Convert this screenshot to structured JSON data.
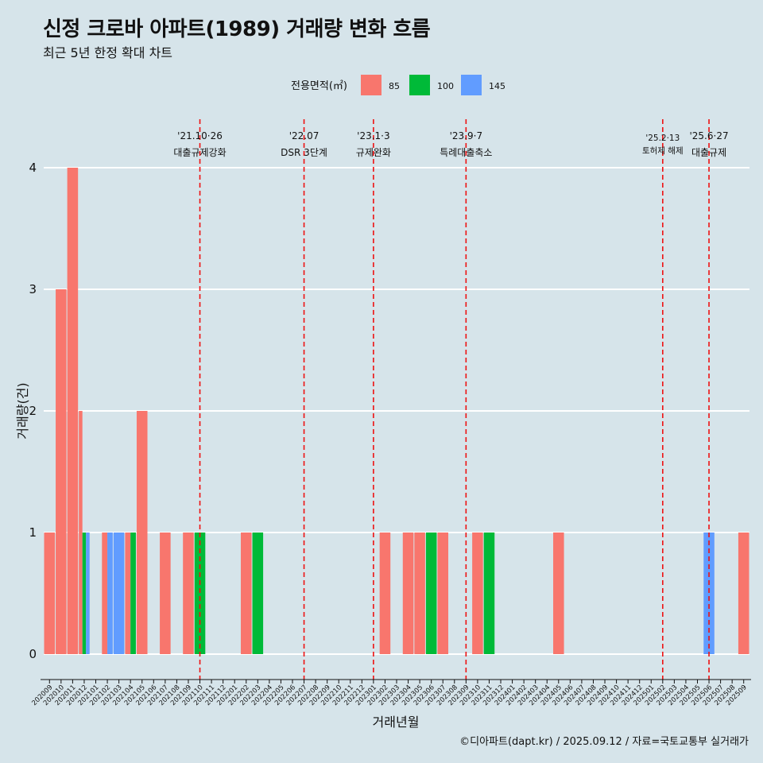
{
  "title": "신정 크로바 아파트(1989) 거래량 변화 흐름",
  "subtitle": "최근 5년 한정 확대 차트",
  "caption": "©디아파트(dapt.kr) / 2025.09.12 / 자료=국토교통부 실거래가",
  "chart_data": {
    "type": "bar",
    "xlabel": "거래년월",
    "ylabel": "거래량(건)",
    "ylim": [
      0,
      4
    ],
    "yticks": [
      0,
      1,
      2,
      3,
      4
    ],
    "legend": {
      "title": "전용면적(㎡)",
      "position": "top",
      "items": [
        {
          "name": "85",
          "color": "#f8766d"
        },
        {
          "name": "100",
          "color": "#00ba38"
        },
        {
          "name": "145",
          "color": "#619cff"
        }
      ]
    },
    "categories": [
      "202009",
      "202010",
      "202011",
      "202012",
      "202101",
      "202102",
      "202103",
      "202104",
      "202105",
      "202106",
      "202107",
      "202108",
      "202109",
      "202110",
      "202111",
      "202112",
      "202201",
      "202202",
      "202203",
      "202204",
      "202205",
      "202206",
      "202207",
      "202208",
      "202209",
      "202210",
      "202211",
      "202212",
      "202301",
      "202302",
      "202303",
      "202304",
      "202305",
      "202306",
      "202307",
      "202308",
      "202309",
      "202310",
      "202311",
      "202312",
      "202401",
      "202402",
      "202403",
      "202404",
      "202405",
      "202406",
      "202407",
      "202408",
      "202409",
      "202410",
      "202411",
      "202412",
      "202501",
      "202502",
      "202503",
      "202504",
      "202505",
      "202506",
      "202507",
      "202508",
      "202509"
    ],
    "series": [
      {
        "name": "85",
        "values": [
          1,
          3,
          4,
          2,
          0,
          1,
          0,
          1,
          2,
          0,
          1,
          0,
          1,
          0,
          0,
          0,
          0,
          1,
          0,
          0,
          0,
          0,
          0,
          0,
          0,
          0,
          0,
          0,
          0,
          1,
          0,
          1,
          1,
          0,
          1,
          0,
          0,
          1,
          0,
          0,
          0,
          0,
          0,
          0,
          1,
          0,
          0,
          0,
          0,
          0,
          0,
          0,
          0,
          0,
          0,
          0,
          0,
          0,
          0,
          0,
          1
        ]
      },
      {
        "name": "100",
        "values": [
          0,
          0,
          0,
          1,
          0,
          0,
          0,
          1,
          0,
          0,
          0,
          0,
          0,
          1,
          0,
          0,
          0,
          0,
          1,
          0,
          0,
          0,
          0,
          0,
          0,
          0,
          0,
          0,
          0,
          0,
          0,
          0,
          0,
          1,
          0,
          0,
          0,
          0,
          1,
          0,
          0,
          0,
          0,
          0,
          0,
          0,
          0,
          0,
          0,
          0,
          0,
          0,
          0,
          0,
          0,
          0,
          0,
          0,
          0,
          0,
          0
        ]
      },
      {
        "name": "145",
        "values": [
          0,
          0,
          0,
          1,
          0,
          1,
          1,
          0,
          0,
          0,
          0,
          0,
          0,
          0,
          0,
          0,
          0,
          0,
          0,
          0,
          0,
          0,
          0,
          0,
          0,
          0,
          0,
          0,
          0,
          0,
          0,
          0,
          0,
          0,
          0,
          0,
          0,
          0,
          0,
          0,
          0,
          0,
          0,
          0,
          0,
          0,
          0,
          0,
          0,
          0,
          0,
          0,
          0,
          0,
          0,
          0,
          0,
          1,
          0,
          0,
          0
        ]
      }
    ],
    "annotations": [
      {
        "x": "202110",
        "date": "'21.10·26",
        "label": "대출규제강화"
      },
      {
        "x": "202207",
        "date": "'22.07",
        "label": "DSR 3단계"
      },
      {
        "x": "202301",
        "date": "'23.1·3",
        "label": "규제완화"
      },
      {
        "x": "202309",
        "date": "'23.9·7",
        "label": "특례대출축소"
      },
      {
        "x": "202502",
        "date": "'25.2·13",
        "label": "토허제 해제"
      },
      {
        "x": "202506",
        "date": "'25.6·27",
        "label": "대출규제"
      }
    ]
  }
}
